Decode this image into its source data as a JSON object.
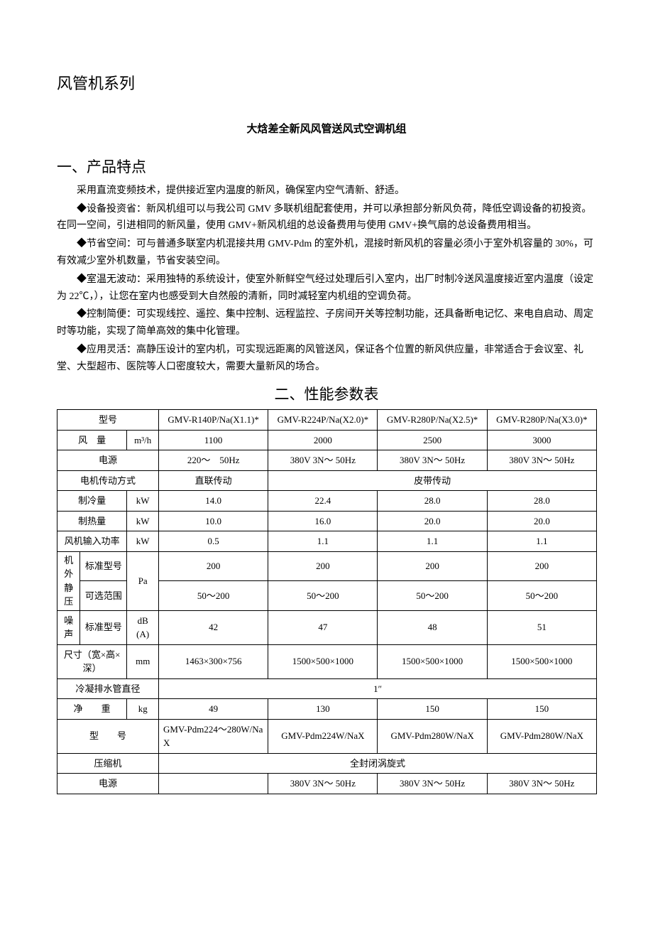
{
  "header": "风管机系列",
  "subtitle": "大焓差全新风风管送风式空调机组",
  "section1": {
    "title": "一、产品特点",
    "line_intro": "采用直流变频技术，提供接近室内温度的新风，确保室内空气清新、舒适。",
    "p1": "◆设备投资省：新风机组可以与我公司 GMV 多联机组配套使用，并可以承担部分新风负荷，降低空调设备的初投资。在同一空间，引进相同的新风量，使用 GMV+新风机组的总设备费用与使用 GMV+换气扇的总设备费用相当。",
    "p2": "◆节省空间：可与普通多联室内机混接共用 GMV-Pdm 的室外机，混接时新风机的容量必须小于室外机容量的 30%，可有效减少室外机数量，节省安装空间。",
    "p3": "◆室温无波动：采用独特的系统设计，使室外新鲜空气经过处理后引入室内，出厂时制冷送风温度接近室内温度（设定为 22℃，），让您在室内也感受到大自然般的清新，同时减轻室内机组的空调负荷。",
    "p4": "◆控制简便：可实现线控、遥控、集中控制、远程监控、子房间开关等控制功能，还具备断电记忆、来电自启动、周定时等功能，实现了简单高效的集中化管理。",
    "p5": "◆应用灵活：高静压设计的室内机，可实现远距离的风管送风，保证各个位置的新风供应量，非常适合于会议室、礼堂、大型超市、医院等人口密度较大，需要大量新风的场合。"
  },
  "section2_title": "二、性能参数表",
  "labels": {
    "model": "型号",
    "airflow": "风　量",
    "airflow_unit": "m³/h",
    "power_supply": "电源",
    "motor_drive": "电机传动方式",
    "cooling": "制冷量",
    "heating": "制热量",
    "kW": "kW",
    "fan_input": "风机输入功率",
    "ext_sp": "机外静压",
    "std_model": "标准型号",
    "option_range": "可选范围",
    "Pa": "Pa",
    "noise": "噪声",
    "dBA": "dB(A)",
    "dim": "尺寸（宽×高×深）",
    "mm": "mm",
    "drain": "冷凝排水管直径",
    "net_weight": "净　　重",
    "kg": "kg",
    "outdoor_model": "型　　号",
    "compressor": "压缩机",
    "outdoor_power": "电源"
  },
  "models": {
    "a": "GMV-R140P/Na(X1.1)*",
    "b": "GMV-R224P/Na(X2.0)*",
    "c": "GMV-R280P/Na(X2.5)*",
    "d": "GMV-R280P/Na(X3.0)*"
  },
  "airflow": {
    "a": "1100",
    "b": "2000",
    "c": "2500",
    "d": "3000"
  },
  "power": {
    "a": "220～　50Hz",
    "b": "380V 3N～ 50Hz",
    "c": "380V 3N～ 50Hz",
    "d": "380V 3N～ 50Hz"
  },
  "drive": {
    "a": "直联传动",
    "bcd": "皮带传动"
  },
  "cooling": {
    "a": "14.0",
    "b": "22.4",
    "c": "28.0",
    "d": "28.0"
  },
  "heating": {
    "a": "10.0",
    "b": "16.0",
    "c": "20.0",
    "d": "20.0"
  },
  "fan_input": {
    "a": "0.5",
    "b": "1.1",
    "c": "1.1",
    "d": "1.1"
  },
  "sp_std": {
    "a": "200",
    "b": "200",
    "c": "200",
    "d": "200"
  },
  "sp_range": {
    "a": "50～200",
    "b": "50～200",
    "c": "50～200",
    "d": "50～200"
  },
  "noise_std": {
    "a": "42",
    "b": "47",
    "c": "48",
    "d": "51"
  },
  "dim": {
    "a": "1463×300×756",
    "b": "1500×500×1000",
    "c": "1500×500×1000",
    "d": "1500×500×1000"
  },
  "drain_val": "1″",
  "net_weight": {
    "a": "49",
    "b": "130",
    "c": "150",
    "d": "150"
  },
  "out_model": {
    "a": "GMV-Pdm224～280W/NaX",
    "b": "GMV-Pdm224W/NaX",
    "c": "GMV-Pdm280W/NaX",
    "d": "GMV-Pdm280W/NaX"
  },
  "compressor_val": "全封闭涡旋式",
  "out_power": {
    "a": "",
    "b": "380V 3N～ 50Hz",
    "c": "380V 3N～ 50Hz",
    "d": "380V 3N～ 50Hz"
  }
}
